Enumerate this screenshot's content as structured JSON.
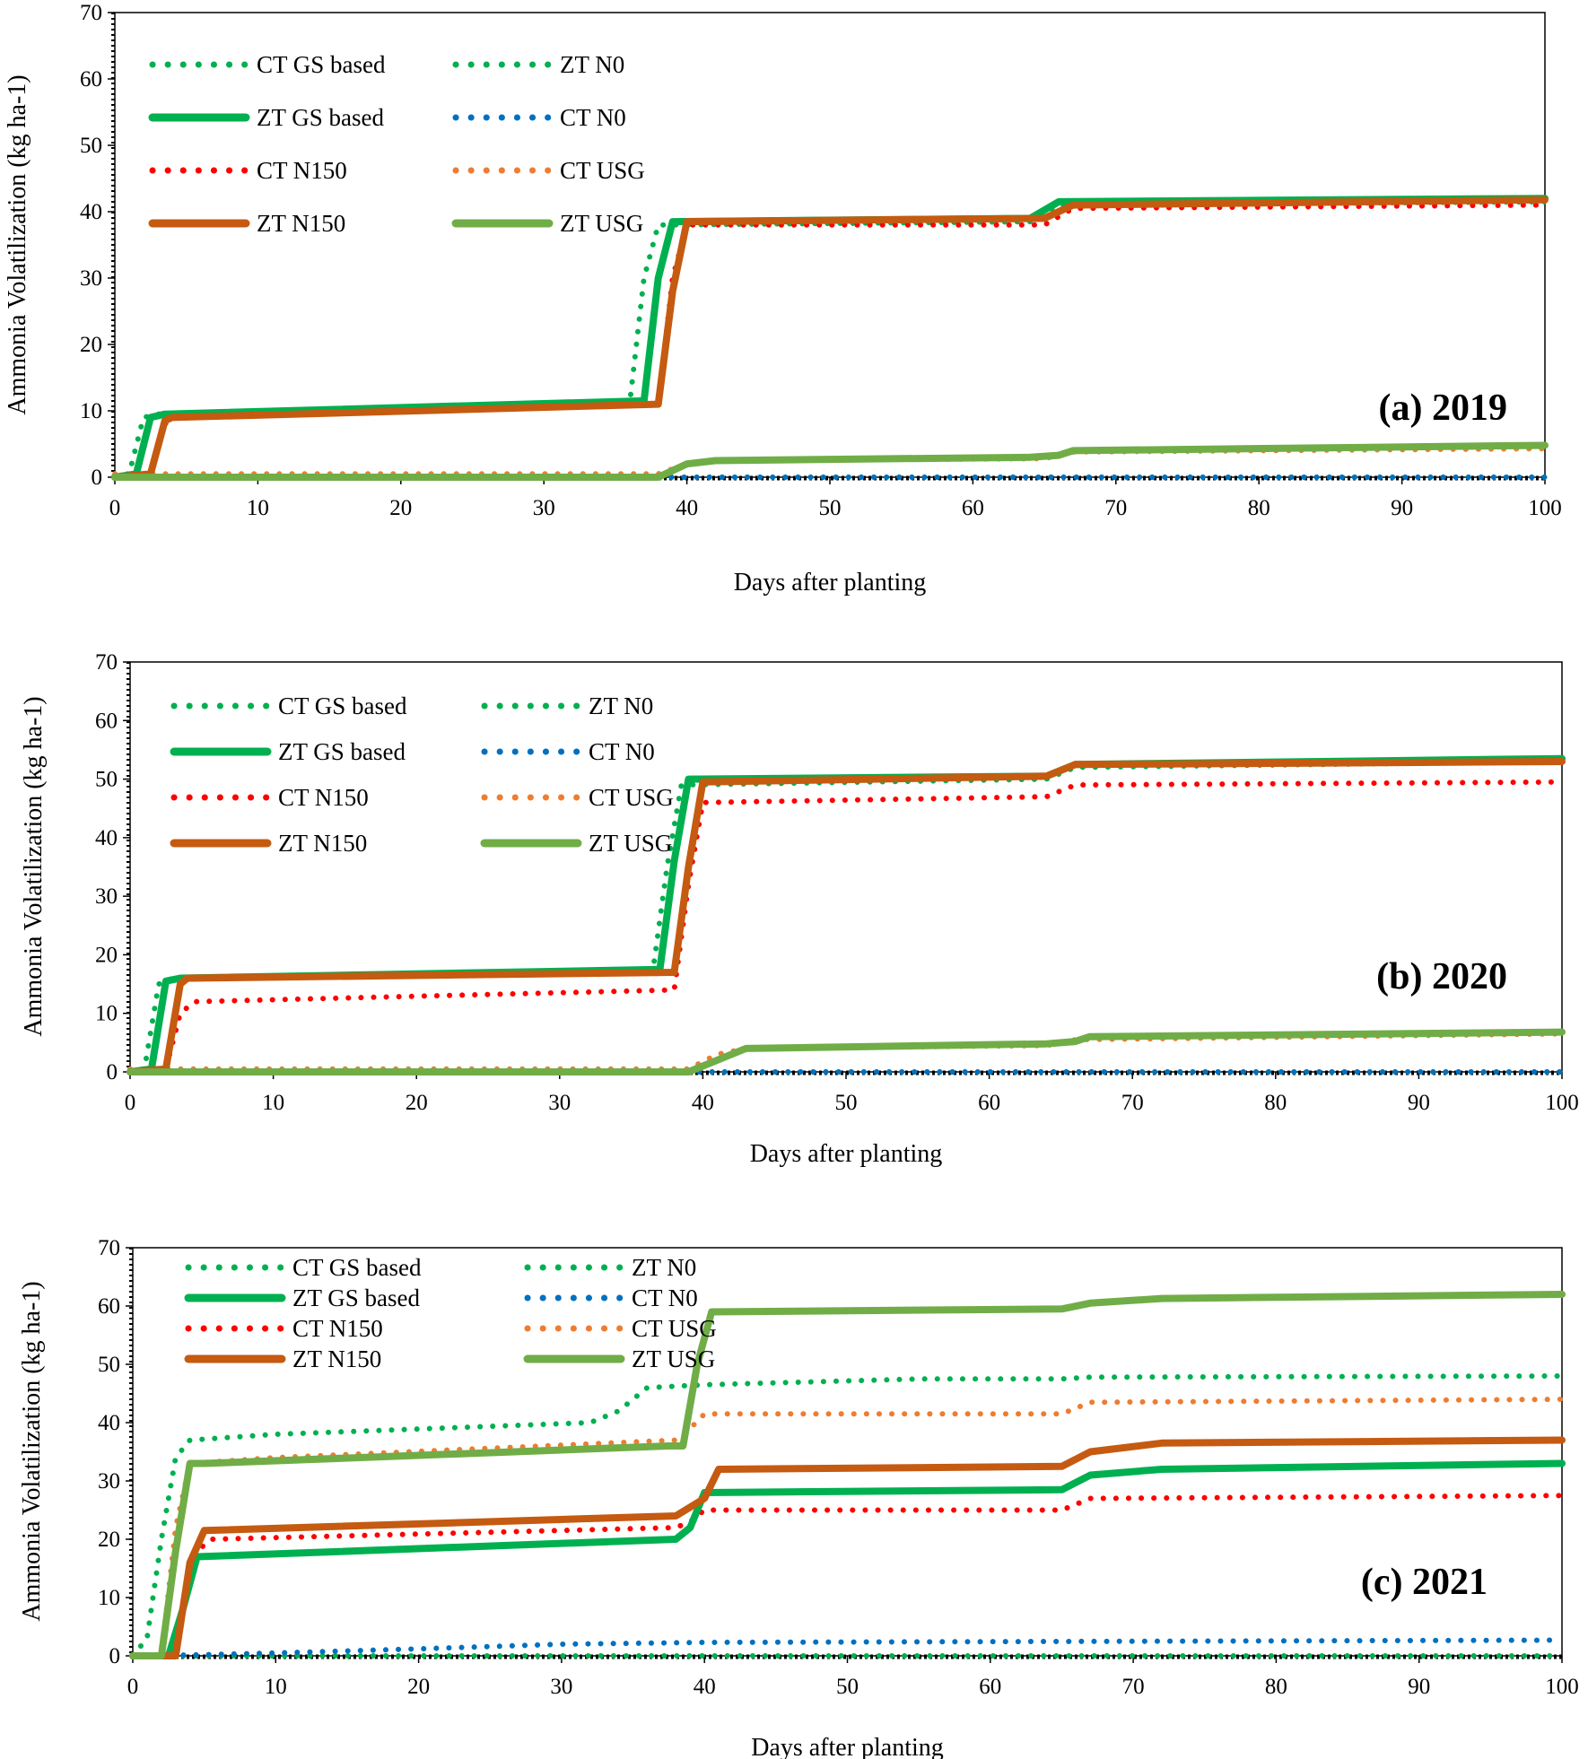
{
  "chart_data": [
    {
      "type": "line",
      "annotation": "(a) 2019",
      "xlabel": "Days after planting",
      "ylabel": "Ammonia Volatilization (kg ha-1)",
      "xlim": [
        0,
        100
      ],
      "ylim": [
        0,
        70
      ],
      "xticks": [
        0,
        10,
        20,
        30,
        40,
        50,
        60,
        70,
        80,
        90,
        100
      ],
      "yticks": [
        0,
        10,
        20,
        30,
        40,
        50,
        60,
        70
      ],
      "legend_position": "top-left",
      "series": [
        {
          "name": "CT GS based",
          "color": "#00B050",
          "style": "dotted",
          "x": [
            0,
            1,
            2,
            3,
            36,
            37,
            38,
            64,
            66,
            100
          ],
          "y": [
            0,
            0.5,
            9,
            9.5,
            11,
            30,
            38,
            38.5,
            41,
            41.5
          ]
        },
        {
          "name": "ZT N0",
          "color": "#00B050",
          "style": "dotted",
          "x": [
            0,
            100
          ],
          "y": [
            0,
            0
          ]
        },
        {
          "name": "ZT GS based",
          "color": "#00B050",
          "style": "solid",
          "x": [
            0,
            1.5,
            2.5,
            3.5,
            37,
            38,
            39,
            64,
            66,
            100
          ],
          "y": [
            0,
            0.5,
            9,
            9.5,
            11.5,
            30,
            38.5,
            39,
            41.5,
            42
          ]
        },
        {
          "name": "CT N0",
          "color": "#0070C0",
          "style": "dotted",
          "x": [
            0,
            100
          ],
          "y": [
            0,
            0
          ]
        },
        {
          "name": "CT N150",
          "color": "#FF0000",
          "style": "dotted",
          "x": [
            0,
            2.5,
            3.5,
            4,
            38,
            39,
            40,
            65,
            67,
            100
          ],
          "y": [
            0,
            0.5,
            8,
            9,
            11,
            30,
            38,
            38,
            40.5,
            41
          ]
        },
        {
          "name": "CT USG",
          "color": "#ED7D31",
          "style": "dotted",
          "x": [
            0,
            38,
            40,
            42,
            65,
            67,
            100
          ],
          "y": [
            0.5,
            0.5,
            2,
            2.5,
            2.8,
            3.8,
            4.3
          ]
        },
        {
          "name": "ZT N150",
          "color": "#C55A11",
          "style": "solid",
          "x": [
            0,
            2.5,
            3.5,
            4,
            38,
            39,
            40,
            65,
            67,
            100
          ],
          "y": [
            0,
            0.5,
            8.5,
            9,
            11,
            28,
            38.5,
            39,
            41,
            41.8
          ]
        },
        {
          "name": "ZT USG",
          "color": "#70AD47",
          "style": "solid",
          "x": [
            0,
            38,
            40,
            42,
            64,
            66,
            67,
            100
          ],
          "y": [
            0,
            0,
            2,
            2.5,
            3,
            3.3,
            4,
            4.8
          ]
        }
      ]
    },
    {
      "type": "line",
      "annotation": "(b) 2020",
      "xlabel": "Days after planting",
      "ylabel": "Ammonia Volatilization (kg ha-1)",
      "xlim": [
        0,
        100
      ],
      "ylim": [
        0,
        70
      ],
      "xticks": [
        0,
        10,
        20,
        30,
        40,
        50,
        60,
        70,
        80,
        90,
        100
      ],
      "yticks": [
        0,
        10,
        20,
        30,
        40,
        50,
        60,
        70
      ],
      "legend_position": "top-left",
      "series": [
        {
          "name": "CT GS based",
          "color": "#00B050",
          "style": "dotted",
          "x": [
            0,
            1,
            2,
            3,
            36.5,
            37.5,
            38.5,
            64,
            66,
            100
          ],
          "y": [
            0,
            0.5,
            15,
            16,
            17,
            35,
            49,
            50,
            52,
            53
          ]
        },
        {
          "name": "ZT N0",
          "color": "#00B050",
          "style": "dotted",
          "x": [
            0,
            100
          ],
          "y": [
            0,
            0
          ]
        },
        {
          "name": "ZT GS based",
          "color": "#00B050",
          "style": "solid",
          "x": [
            0,
            1.5,
            2.5,
            3.5,
            37,
            38,
            39,
            64,
            66,
            100
          ],
          "y": [
            0,
            0.5,
            15.5,
            16,
            17.5,
            36,
            50,
            50.5,
            52.5,
            53.5
          ]
        },
        {
          "name": "CT N0",
          "color": "#0070C0",
          "style": "dotted",
          "x": [
            0,
            100
          ],
          "y": [
            0,
            0
          ]
        },
        {
          "name": "CT N150",
          "color": "#FF0000",
          "style": "dotted",
          "x": [
            0,
            2.5,
            3.5,
            4.5,
            38,
            39,
            40,
            64,
            66,
            100
          ],
          "y": [
            0,
            0.5,
            10,
            12,
            14,
            32,
            46,
            47,
            49,
            49.5
          ]
        },
        {
          "name": "CT USG",
          "color": "#ED7D31",
          "style": "dotted",
          "x": [
            0,
            39,
            41,
            43,
            64,
            66,
            100
          ],
          "y": [
            0.5,
            0.5,
            3,
            4,
            4.5,
            5.5,
            6.5
          ]
        },
        {
          "name": "ZT N150",
          "color": "#C55A11",
          "style": "solid",
          "x": [
            0,
            2.5,
            3.5,
            4,
            38,
            39,
            40,
            64,
            66,
            100
          ],
          "y": [
            0,
            0.5,
            15,
            16,
            17,
            35,
            49.5,
            50.5,
            52.5,
            53
          ]
        },
        {
          "name": "ZT USG",
          "color": "#70AD47",
          "style": "solid",
          "x": [
            0,
            39,
            41,
            43,
            64,
            66,
            67,
            100
          ],
          "y": [
            0,
            0,
            2,
            4,
            4.8,
            5.2,
            6,
            6.8
          ]
        }
      ]
    },
    {
      "type": "line",
      "annotation": "(c) 2021",
      "xlabel": "Days after planting",
      "ylabel": "Ammonia Volatilization (kg ha-1)",
      "xlim": [
        0,
        100
      ],
      "ylim": [
        0,
        70
      ],
      "xticks": [
        0,
        10,
        20,
        30,
        40,
        50,
        60,
        70,
        80,
        90,
        100
      ],
      "yticks": [
        0,
        10,
        20,
        30,
        40,
        50,
        60,
        70
      ],
      "legend_position": "top-left",
      "series": [
        {
          "name": "CT GS based",
          "color": "#00B050",
          "style": "dotted",
          "x": [
            0,
            1,
            2,
            3,
            4,
            10,
            32,
            34,
            36,
            40,
            55,
            65,
            67,
            100
          ],
          "y": [
            0,
            3,
            20,
            34,
            37,
            38,
            40,
            42,
            46,
            46.5,
            47.5,
            47.5,
            47.8,
            48
          ]
        },
        {
          "name": "ZT N0",
          "color": "#00B050",
          "style": "dotted",
          "x": [
            0,
            100
          ],
          "y": [
            0,
            0
          ]
        },
        {
          "name": "ZT GS based",
          "color": "#00B050",
          "style": "solid",
          "x": [
            0,
            2.5,
            3.5,
            4.5,
            38,
            39,
            40,
            65,
            67,
            72,
            100
          ],
          "y": [
            0,
            0,
            8,
            17,
            20,
            22,
            28,
            28.5,
            31,
            32,
            33
          ]
        },
        {
          "name": "CT N0",
          "color": "#0070C0",
          "style": "dotted",
          "x": [
            0,
            5,
            10,
            20,
            30,
            40,
            100
          ],
          "y": [
            0,
            0.2,
            0.5,
            1.2,
            2,
            2.3,
            2.7
          ]
        },
        {
          "name": "CT N150",
          "color": "#FF0000",
          "style": "dotted",
          "x": [
            0,
            2.5,
            3.5,
            4.5,
            5.5,
            38,
            39,
            40,
            65,
            67,
            100
          ],
          "y": [
            0,
            0,
            8,
            18,
            20,
            22,
            23,
            25,
            25,
            27,
            27.5
          ]
        },
        {
          "name": "CT USG",
          "color": "#ED7D31",
          "style": "dotted",
          "x": [
            0,
            2,
            3,
            4,
            10,
            38,
            39,
            40,
            65,
            67,
            100
          ],
          "y": [
            0,
            0,
            22,
            33,
            34,
            37,
            39,
            41.5,
            41.5,
            43.5,
            44
          ]
        },
        {
          "name": "ZT N150",
          "color": "#C55A11",
          "style": "solid",
          "x": [
            0,
            3,
            4,
            5,
            38,
            40,
            41,
            65,
            67,
            72,
            100
          ],
          "y": [
            0,
            0,
            16,
            21.5,
            24,
            27,
            32,
            32.5,
            35,
            36.5,
            37
          ]
        },
        {
          "name": "ZT USG",
          "color": "#70AD47",
          "style": "solid",
          "x": [
            0,
            2,
            3,
            4,
            5,
            37.5,
            38.5,
            39.5,
            40.5,
            65,
            67,
            72,
            100
          ],
          "y": [
            0,
            0,
            18,
            33,
            33,
            36,
            36,
            50,
            59,
            59.5,
            60.5,
            61.3,
            62
          ]
        }
      ]
    }
  ]
}
